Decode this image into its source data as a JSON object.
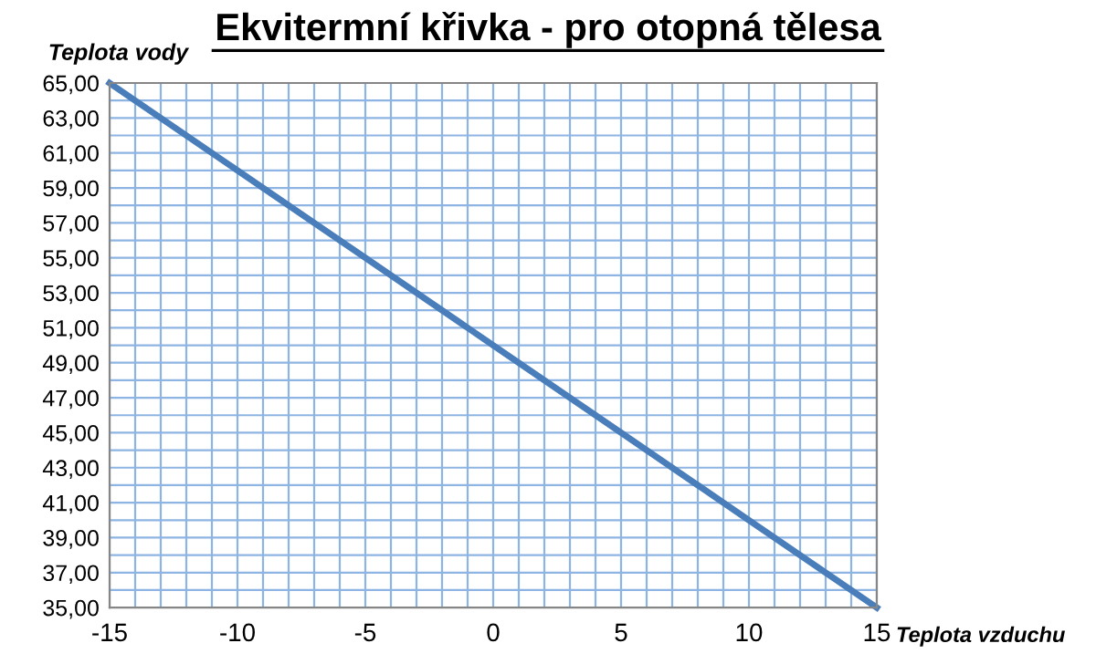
{
  "chart_data": {
    "type": "line",
    "title": "Ekvitermní křivka - pro otopná tělesa",
    "xlabel": "Teplota vzduchu",
    "ylabel": "Teplota vody",
    "x": [
      -15,
      -10,
      -5,
      0,
      5,
      10,
      15
    ],
    "series": [
      {
        "color": "#4a7ebb",
        "values": [
          65,
          60,
          55,
          50,
          45,
          40,
          35
        ]
      }
    ],
    "xlim": [
      -15,
      15
    ],
    "ylim": [
      35,
      65
    ],
    "xticks": [
      -15,
      {
        "value": -14,
        "label": null
      },
      {
        "value": -13,
        "label": null
      },
      {
        "value": -12,
        "label": null
      },
      {
        "value": -11,
        "label": null
      },
      -10,
      {
        "value": -9,
        "label": null
      },
      {
        "value": -8,
        "label": null
      },
      {
        "value": -7,
        "label": null
      },
      {
        "value": -6,
        "label": null
      },
      -5,
      {
        "value": -4,
        "label": null
      },
      {
        "value": -3,
        "label": null
      },
      {
        "value": -2,
        "label": null
      },
      {
        "value": -1,
        "label": null
      },
      0,
      {
        "value": 1,
        "label": null
      },
      {
        "value": 2,
        "label": null
      },
      {
        "value": 3,
        "label": null
      },
      {
        "value": 4,
        "label": null
      },
      5,
      {
        "value": 6,
        "label": null
      },
      {
        "value": 7,
        "label": null
      },
      {
        "value": 8,
        "label": null
      },
      {
        "value": 9,
        "label": null
      },
      10,
      {
        "value": 11,
        "label": null
      },
      {
        "value": 12,
        "label": null
      },
      {
        "value": 13,
        "label": null
      },
      {
        "value": 14,
        "label": null
      },
      15
    ],
    "yticks": [
      {
        "value": 35,
        "label": "35,00"
      },
      {
        "value": 36,
        "label": null
      },
      {
        "value": 37,
        "label": "37,00"
      },
      {
        "value": 38,
        "label": null
      },
      {
        "value": 39,
        "label": "39,00"
      },
      {
        "value": 40,
        "label": null
      },
      {
        "value": 41,
        "label": "41,00"
      },
      {
        "value": 42,
        "label": null
      },
      {
        "value": 43,
        "label": "43,00"
      },
      {
        "value": 44,
        "label": null
      },
      {
        "value": 45,
        "label": "45,00"
      },
      {
        "value": 46,
        "label": null
      },
      {
        "value": 47,
        "label": "47,00"
      },
      {
        "value": 48,
        "label": null
      },
      {
        "value": 49,
        "label": "49,00"
      },
      {
        "value": 50,
        "label": null
      },
      {
        "value": 51,
        "label": "51,00"
      },
      {
        "value": 52,
        "label": null
      },
      {
        "value": 53,
        "label": "53,00"
      },
      {
        "value": 54,
        "label": null
      },
      {
        "value": 55,
        "label": "55,00"
      },
      {
        "value": 56,
        "label": null
      },
      {
        "value": 57,
        "label": "57,00"
      },
      {
        "value": 58,
        "label": null
      },
      {
        "value": 59,
        "label": "59,00"
      },
      {
        "value": 60,
        "label": null
      },
      {
        "value": 61,
        "label": "61,00"
      },
      {
        "value": 62,
        "label": null
      },
      {
        "value": 63,
        "label": "63,00"
      },
      {
        "value": 64,
        "label": null
      },
      {
        "value": 65,
        "label": "65,00"
      }
    ],
    "grid": true,
    "marker": "none",
    "line_style": "solid"
  }
}
